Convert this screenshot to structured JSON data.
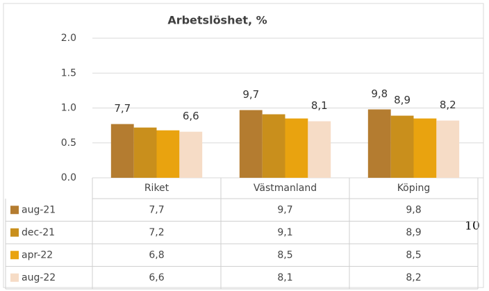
{
  "chart_data": {
    "type": "bar",
    "title": "Arbetslöshet, %",
    "categories": [
      "Riket",
      "Västmanland",
      "Köping"
    ],
    "series": [
      {
        "name": "aug-21",
        "color": "#b47c30",
        "values": [
          0.77,
          0.97,
          0.98
        ],
        "value_labels": [
          "7,7",
          "9,7",
          "9,8"
        ],
        "table_labels": [
          "7,7",
          "9,7",
          "9,8"
        ]
      },
      {
        "name": "dec-21",
        "color": "#c98f1c",
        "values": [
          0.72,
          0.91,
          0.89
        ],
        "value_labels": [
          null,
          null,
          "8,9"
        ],
        "table_labels": [
          "7,2",
          "9,1",
          "8,9"
        ]
      },
      {
        "name": "apr-22",
        "color": "#e9a30f",
        "values": [
          0.68,
          0.85,
          0.85
        ],
        "value_labels": [
          null,
          null,
          null
        ],
        "table_labels": [
          "6,8",
          "8,5",
          "8,5"
        ]
      },
      {
        "name": "aug-22",
        "color": "#f6dcc6",
        "values": [
          0.66,
          0.81,
          0.82
        ],
        "value_labels": [
          "6,6",
          "8,1",
          "8,2"
        ],
        "table_labels": [
          "6,6",
          "8,1",
          "8,2"
        ]
      }
    ],
    "ylim": [
      0,
      2
    ],
    "yticks": [
      {
        "value": 0,
        "label": "0.0"
      },
      {
        "value": 0.5,
        "label": "0.5"
      },
      {
        "value": 1,
        "label": "1.0"
      },
      {
        "value": 1.5,
        "label": "1.5"
      },
      {
        "value": 2,
        "label": "2.0"
      }
    ],
    "grid": true,
    "legend": "table"
  },
  "marginal_text": "10"
}
